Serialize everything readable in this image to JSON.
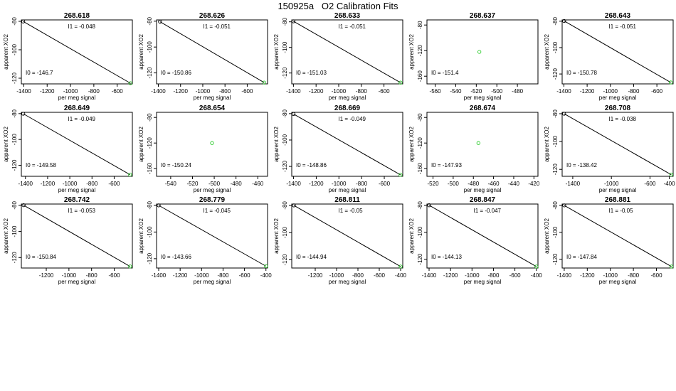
{
  "title": "150925a   O2 Calibration Fits",
  "colors": {
    "line": "#000000",
    "point_green": "#2ecc2e",
    "point_dark": "#000000",
    "axis": "#000000"
  },
  "chart_data": [
    {
      "type": "scatter",
      "title": "268.618",
      "xlabel": "per meg signal",
      "ylabel": "apparent XO2",
      "x": [
        -1405,
        -487
      ],
      "y": [
        -80.1,
        -123.5
      ],
      "i1": "-0.048",
      "i0": "-146.7",
      "xticks": [
        -1400,
        -1200,
        -1000,
        -800,
        -600
      ],
      "yticks": [
        -80,
        -100,
        -120
      ],
      "xlim": [
        -1421,
        -470
      ],
      "ylim": [
        -124,
        -79
      ],
      "fit": true
    },
    {
      "type": "scatter",
      "title": "268.626",
      "xlabel": "per meg signal",
      "ylabel": "apparent XO2",
      "x": [
        -1385,
        -447
      ],
      "y": [
        -80.4,
        -127.5
      ],
      "i1": "-0.051",
      "i0": "-150.86",
      "xticks": [
        -1400,
        -1200,
        -1000,
        -800,
        -600
      ],
      "yticks": [
        -80,
        -100,
        -120
      ],
      "xlim": [
        -1416,
        -417
      ],
      "ylim": [
        -128.5,
        -79
      ],
      "fit": true
    },
    {
      "type": "scatter",
      "title": "268.633",
      "xlabel": "per meg signal",
      "ylabel": "apparent XO2",
      "x": [
        -1400,
        -454
      ],
      "y": [
        -79.6,
        -127.5
      ],
      "i1": "-0.051",
      "i0": "-151.03",
      "xticks": [
        -1400,
        -1200,
        -1000,
        -800,
        -600
      ],
      "yticks": [
        -80,
        -100,
        -120
      ],
      "xlim": [
        -1415,
        -434
      ],
      "ylim": [
        -128.5,
        -78.5
      ],
      "fit": true
    },
    {
      "type": "scatter",
      "title": "268.637",
      "xlabel": "per meg signal",
      "ylabel": "apparent XO2",
      "x": [
        -517
      ],
      "y": [
        -122
      ],
      "i1": "",
      "i0": "-151.4",
      "xticks": [
        -560,
        -540,
        -520,
        -500,
        -480
      ],
      "yticks": [
        -80,
        -120,
        -160
      ],
      "xlim": [
        -568,
        -460
      ],
      "ylim": [
        -172,
        -72
      ],
      "fit": false
    },
    {
      "type": "scatter",
      "title": "268.643",
      "xlabel": "per meg signal",
      "ylabel": "apparent XO2",
      "x": [
        -1398,
        -481
      ],
      "y": [
        -79.8,
        -126.4
      ],
      "i1": "-0.051",
      "i0": "-150.78",
      "xticks": [
        -1400,
        -1200,
        -1000,
        -800,
        -600
      ],
      "yticks": [
        -80,
        -100,
        -120
      ],
      "xlim": [
        -1415,
        -460
      ],
      "ylim": [
        -127.5,
        -79
      ],
      "fit": true
    },
    {
      "type": "scatter",
      "title": "268.649",
      "xlabel": "per meg signal",
      "ylabel": "apparent XO2",
      "x": [
        -1420,
        -457
      ],
      "y": [
        -80.1,
        -127.2
      ],
      "i1": "-0.049",
      "i0": "-149.58",
      "xticks": [
        -1400,
        -1200,
        -1000,
        -800,
        -600
      ],
      "yticks": [
        -80,
        -100,
        -120
      ],
      "xlim": [
        -1437,
        -436
      ],
      "ylim": [
        -128.5,
        -79
      ],
      "fit": true
    },
    {
      "type": "scatter",
      "title": "268.654",
      "xlabel": "per meg signal",
      "ylabel": "apparent XO2",
      "x": [
        -502
      ],
      "y": [
        -120
      ],
      "i1": "",
      "i0": "-150.24",
      "xticks": [
        -540,
        -520,
        -500,
        -480,
        -460
      ],
      "yticks": [
        -80,
        -120,
        -160
      ],
      "xlim": [
        -553,
        -451
      ],
      "ylim": [
        -172,
        -72
      ],
      "fit": false
    },
    {
      "type": "scatter",
      "title": "268.669",
      "xlabel": "per meg signal",
      "ylabel": "apparent XO2",
      "x": [
        -1400,
        -457
      ],
      "y": [
        -80.3,
        -126.4
      ],
      "i1": "-0.049",
      "i0": "-148.86",
      "xticks": [
        -1400,
        -1200,
        -1000,
        -800,
        -600
      ],
      "yticks": [
        -80,
        -100,
        -120
      ],
      "xlim": [
        -1416,
        -437
      ],
      "ylim": [
        -127.5,
        -79
      ],
      "fit": true
    },
    {
      "type": "scatter",
      "title": "268.674",
      "xlabel": "per meg signal",
      "ylabel": "apparent XO2",
      "x": [
        -475
      ],
      "y": [
        -120
      ],
      "i1": "",
      "i0": "-147.93",
      "xticks": [
        -520,
        -500,
        -480,
        -460,
        -440,
        -420
      ],
      "yticks": [
        -80,
        -120,
        -160
      ],
      "xlim": [
        -526,
        -416
      ],
      "ylim": [
        -172,
        -72
      ],
      "fit": false
    },
    {
      "type": "scatter",
      "title": "268.708",
      "xlabel": "per meg signal",
      "ylabel": "apparent XO2",
      "x": [
        -1490,
        -380
      ],
      "y": [
        -80,
        -123.8
      ],
      "i1": "-0.038",
      "i0": "-138.42",
      "xticks": [
        -1400,
        -1000,
        -600,
        -400
      ],
      "yticks": [
        -80,
        -100,
        -120
      ],
      "xlim": [
        -1510,
        -360
      ],
      "ylim": [
        -125,
        -79
      ],
      "fit": true
    },
    {
      "type": "scatter",
      "title": "268.742",
      "xlabel": "per meg signal",
      "ylabel": "apparent XO2",
      "x": [
        -1400,
        -460
      ],
      "y": [
        -79.9,
        -126.8
      ],
      "i1": "-0.053",
      "i0": "-150.84",
      "xticks": [
        -1200,
        -1000,
        -800,
        -600
      ],
      "yticks": [
        -80,
        -100,
        -120
      ],
      "xlim": [
        -1420,
        -440
      ],
      "ylim": [
        -128,
        -79
      ],
      "fit": true
    },
    {
      "type": "scatter",
      "title": "268.779",
      "xlabel": "per meg signal",
      "ylabel": "apparent XO2",
      "x": [
        -1400,
        -400
      ],
      "y": [
        -80,
        -125.6
      ],
      "i1": "-0.045",
      "i0": "-143.66",
      "xticks": [
        -1400,
        -1200,
        -1000,
        -800,
        -600,
        -400
      ],
      "yticks": [
        -80,
        -100,
        -120
      ],
      "xlim": [
        -1420,
        -385
      ],
      "ylim": [
        -127,
        -79
      ],
      "fit": true
    },
    {
      "type": "scatter",
      "title": "268.811",
      "xlabel": "per meg signal",
      "ylabel": "apparent XO2",
      "x": [
        -1400,
        -400
      ],
      "y": [
        -80,
        -124.9
      ],
      "i1": "-0.05",
      "i0": "-144.94",
      "xticks": [
        -1200,
        -1000,
        -800,
        -600,
        -400
      ],
      "yticks": [
        -80,
        -100,
        -120
      ],
      "xlim": [
        -1420,
        -380
      ],
      "ylim": [
        -126,
        -79
      ],
      "fit": true
    },
    {
      "type": "scatter",
      "title": "268.847",
      "xlabel": "per meg signal",
      "ylabel": "apparent XO2",
      "x": [
        -1400,
        -400
      ],
      "y": [
        -79.9,
        -125.4
      ],
      "i1": "-0.047",
      "i0": "-144.13",
      "xticks": [
        -1400,
        -1200,
        -1000,
        -800,
        -600,
        -400
      ],
      "yticks": [
        -80,
        -100,
        -120
      ],
      "xlim": [
        -1420,
        -385
      ],
      "ylim": [
        -126.5,
        -79
      ],
      "fit": true
    },
    {
      "type": "scatter",
      "title": "268.881",
      "xlabel": "per meg signal",
      "ylabel": "apparent XO2",
      "x": [
        -1400,
        -470
      ],
      "y": [
        -80,
        -125.4
      ],
      "i1": "-0.05",
      "i0": "-147.84",
      "xticks": [
        -1400,
        -1200,
        -1000,
        -800,
        -600
      ],
      "yticks": [
        -80,
        -100,
        -120
      ],
      "xlim": [
        -1418,
        -455
      ],
      "ylim": [
        -126.5,
        -79
      ],
      "fit": true
    }
  ]
}
